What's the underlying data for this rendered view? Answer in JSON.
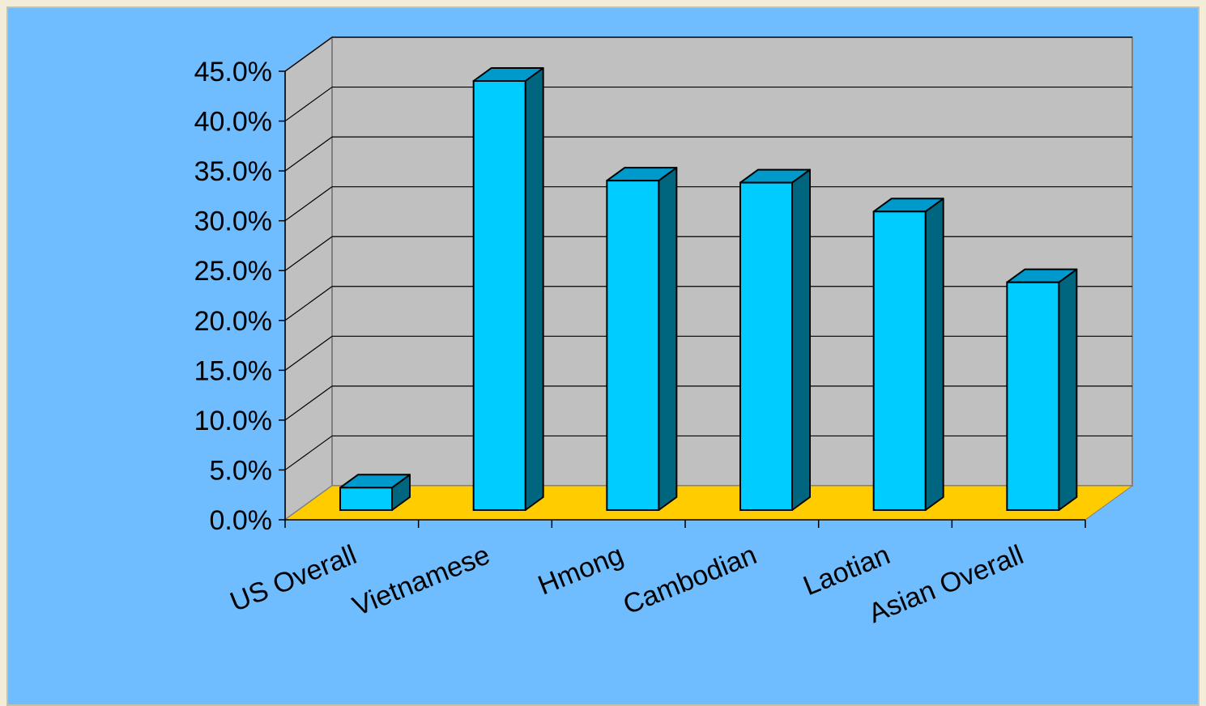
{
  "chart_data": {
    "type": "bar",
    "categories": [
      "US Overall",
      "Vietnamese",
      "Hmong",
      "Cambodian",
      "Laotian",
      "Asian Overall"
    ],
    "values": [
      4.2,
      45.0,
      35.0,
      34.8,
      31.9,
      24.8
    ],
    "ylim": [
      0,
      45
    ],
    "yticks": [
      "0.0%",
      "5.0%",
      "10.0%",
      "15.0%",
      "20.0%",
      "25.0%",
      "30.0%",
      "35.0%",
      "40.0%",
      "45.0%"
    ],
    "grid": true,
    "legend": "none",
    "colors": {
      "background": "#6fbcff",
      "wall": "#c0c0c0",
      "floor": "#ffcc00",
      "bar_front": "#00ccff",
      "bar_top": "#0099cc",
      "bar_side": "#006680"
    }
  }
}
